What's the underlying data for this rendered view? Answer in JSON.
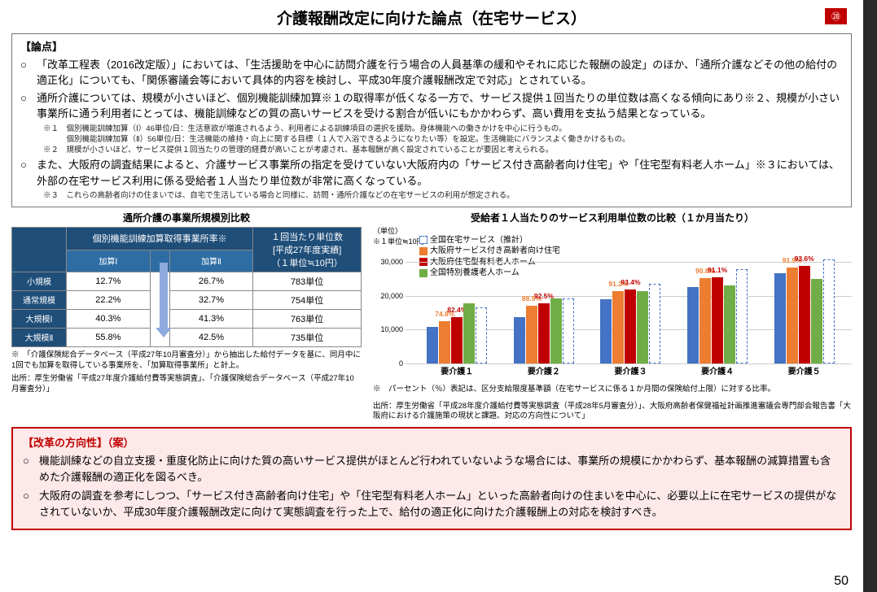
{
  "title": "介護報酬改定に向けた論点（在宅サービス）",
  "badge": "㉘",
  "page_number": "50",
  "issues": {
    "label": "【論点】",
    "bullets": [
      "「改革工程表（2016改定版）」においては、「生活援助を中心に訪問介護を行う場合の人員基準の緩和やそれに応じた報酬の設定」のほか、「通所介護などその他の給付の適正化」についても、「関係審議会等において具体的内容を検討し、平成30年度介護報酬改定で対応」とされている。",
      "通所介護については、規模が小さいほど、個別機能訓練加算※１の取得率が低くなる一方で、サービス提供１回当たりの単位数は高くなる傾向にあり※２、規模が小さい事業所に通う利用者にとっては、機能訓練などの質の高いサービスを受ける割合が低いにもかかわらず、高い費用を支払う結果となっている。",
      "また、大阪府の調査結果によると、介護サービス事業所の指定を受けていない大阪府内の「サービス付き高齢者向け住宅」や「住宅型有料老人ホーム」※３においては、外部の在宅サービス利用に係る受給者１人当たり単位数が非常に高くなっている。"
    ],
    "footnotes": [
      "※１　個別機能訓練加算（Ⅰ）46単位/日：生活意欲が増進されるよう、利用者による訓練項目の選択を援助。身体機能への働きかけを中心に行うもの。",
      "　　　個別機能訓練加算（Ⅱ）56単位/日：生活機能の維持・向上に関する目標（１人で入浴できるようになりたい等）を設定。生活機能にバランスよく働きかけるもの。",
      "※２　規模が小さいほど、サービス提供１回当たりの管理的経費が高いことが考慮され、基本報酬が高く設定されていることが要因と考えられる。",
      "※３　これらの高齢者向けの住まいでは、自宅で生活している場合と同様に、訪問・通所介護などの在宅サービスの利用が想定される。"
    ]
  },
  "table": {
    "title": "通所介護の事業所規模別比較",
    "headers": {
      "main": "個別機能訓練加算取得事業所率※",
      "sub1": "加算Ⅰ",
      "sub2": "加算Ⅱ",
      "col3a": "１回当たり単位数",
      "col3b": "[平成27年度実績]",
      "col3c": "（１単位≒10円）"
    },
    "rows": [
      {
        "name": "小規模",
        "v1": "12.7%",
        "v2": "26.7%",
        "v3": "783単位"
      },
      {
        "name": "通常規模",
        "v1": "22.2%",
        "v2": "32.7%",
        "v3": "754単位"
      },
      {
        "name": "大規模Ⅰ",
        "v1": "40.3%",
        "v2": "41.3%",
        "v3": "763単位"
      },
      {
        "name": "大規模Ⅱ",
        "v1": "55.8%",
        "v2": "42.5%",
        "v3": "735単位"
      }
    ],
    "note1": "※　「介護保険総合データベース（平成27年10月審査分）」から抽出した給付データを基に、同月中に1回でも加算を取得している事業所を、「加算取得事業所」と計上。",
    "note2": "出所：厚生労働省「平成27年度介護給付費等実態調査」、「介護保険総合データベース（平成27年10月審査分）」"
  },
  "chart": {
    "title": "受給者１人当たりのサービス利用単位数の比較（１か月当たり）",
    "unit_label": "（単位）",
    "unit_note": "※１単位≒10円",
    "ymax": 35000,
    "yticks": [
      0,
      10000,
      20000,
      30000
    ],
    "legend": [
      {
        "label": "全国在宅サービス（推計）",
        "color": "#4472c4",
        "dashed": true
      },
      {
        "label": "大阪府サービス付き高齢者向け住宅",
        "color": "#ed7d31"
      },
      {
        "label": "大阪府住宅型有料老人ホーム",
        "color": "#c00000"
      },
      {
        "label": "全国特別養護老人ホーム",
        "color": "#70ad47"
      }
    ],
    "categories": [
      "要介護１",
      "要介護２",
      "要介護３",
      "要介護４",
      "要介護５"
    ],
    "series": [
      {
        "values": [
          10800,
          13800,
          18900,
          22600,
          26700
        ],
        "labels": [
          "",
          "",
          "",
          "",
          ""
        ],
        "color": "#4472c4"
      },
      {
        "values": [
          12460,
          17060,
          21455,
          25355,
          28315
        ],
        "labels": [
          "74.8%",
          "88.5%",
          "91.2%",
          "90.8%",
          "91.9%"
        ],
        "color": "#ed7d31"
      },
      {
        "values": [
          13720,
          17830,
          21970,
          25445,
          28830
        ],
        "labels": [
          "82.4%",
          "92.5%",
          "93.4%",
          "91.1%",
          "93.6%"
        ],
        "color": "#c00000"
      },
      {
        "values": [
          17700,
          19300,
          21300,
          23200,
          25100
        ],
        "labels": [
          "",
          "",
          "",
          "",
          ""
        ],
        "color": "#70ad47"
      }
    ],
    "dashed_values": [
      16660,
      19280,
      23520,
      27930,
      30800
    ],
    "note1": "※　パーセント（％）表記は、区分支給限度基準額（在宅サービスに係る１か月間の保険給付上限）に対する比率。",
    "note2": "出所：厚生労働省「平成28年度介護給付費等実態調査（平成28年5月審査分）」、大阪府高齢者保健福祉計画推進審議会専門部会報告書「大阪府における介護施策の現状と課題、対応の方向性について」"
  },
  "reform": {
    "label": "【改革の方向性】（案）",
    "bullets": [
      "機能訓練などの自立支援・重度化防止に向けた質の高いサービス提供がほとんど行われていないような場合には、事業所の規模にかかわらず、基本報酬の減算措置も含めた介護報酬の適正化を図るべき。",
      "大阪府の調査を参考にしつつ、「サービス付き高齢者向け住宅」や「住宅型有料老人ホーム」といった高齢者向けの住まいを中心に、必要以上に在宅サービスの提供がなされていないか、平成30年度介護報酬改定に向けて実態調査を行った上で、給付の適正化に向けた介護報酬上の対応を検討すべき。"
    ]
  }
}
